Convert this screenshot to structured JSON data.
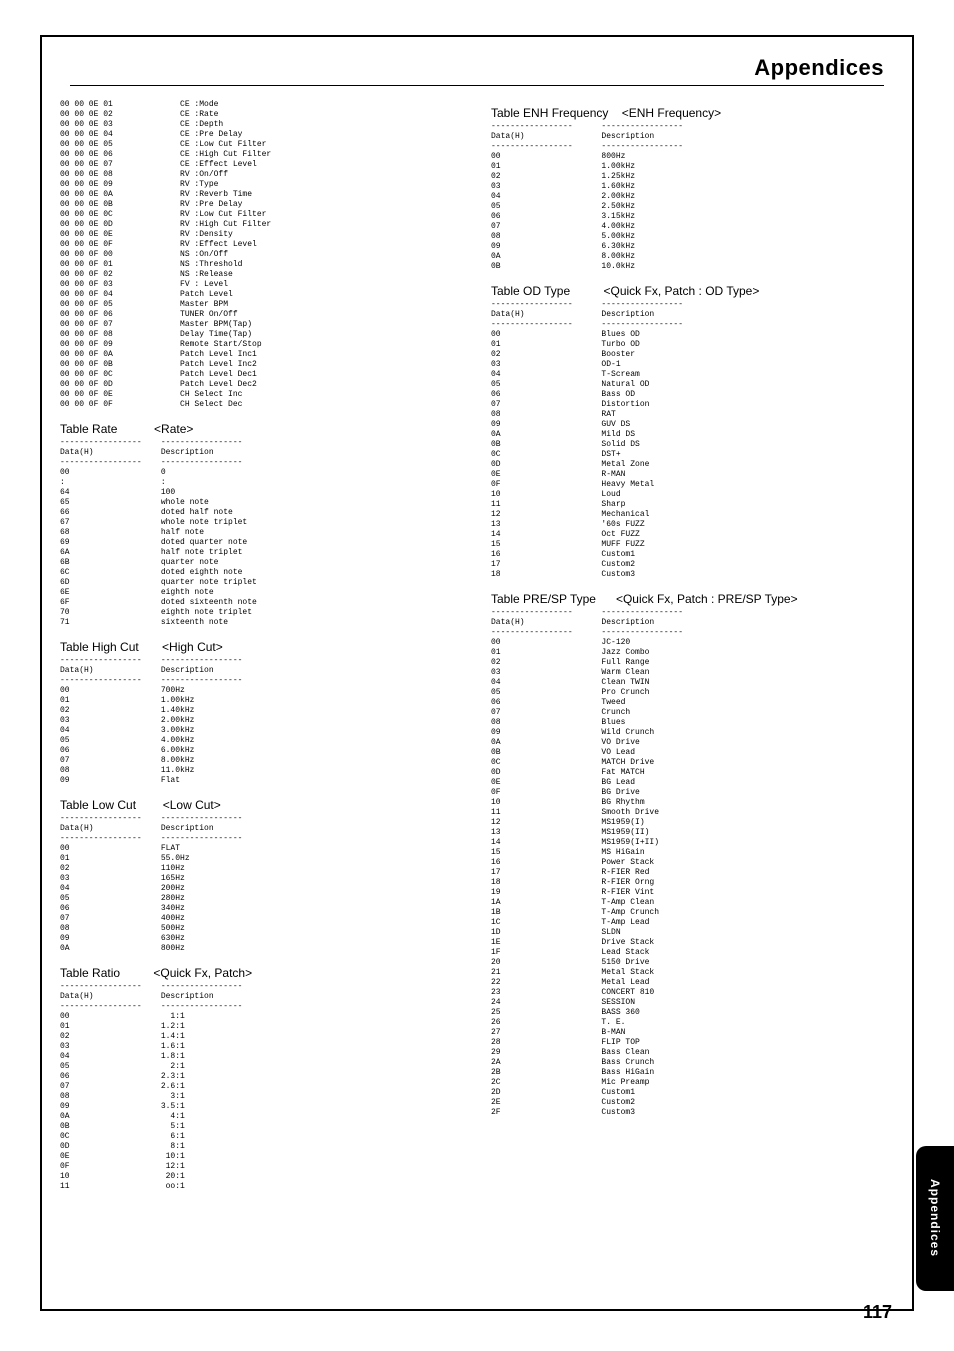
{
  "header_title": "Appendices",
  "side_tab": "Appendices",
  "page_number": "117",
  "left": {
    "hexdump": "00 00 0E 01              CE :Mode\n00 00 0E 02              CE :Rate\n00 00 0E 03              CE :Depth\n00 00 0E 04              CE :Pre Delay\n00 00 0E 05              CE :Low Cut Filter\n00 00 0E 06              CE :High Cut Filter\n00 00 0E 07              CE :Effect Level\n00 00 0E 08              RV :On/Off\n00 00 0E 09              RV :Type\n00 00 0E 0A              RV :Reverb Time\n00 00 0E 0B              RV :Pre Delay\n00 00 0E 0C              RV :Low Cut Filter\n00 00 0E 0D              RV :High Cut Filter\n00 00 0E 0E              RV :Density\n00 00 0E 0F              RV :Effect Level\n00 00 0F 00              NS :On/Off\n00 00 0F 01              NS :Threshold\n00 00 0F 02              NS :Release\n00 00 0F 03              FV : Level\n00 00 0F 04              Patch Level\n00 00 0F 05              Master BPM\n00 00 0F 06              TUNER On/Off\n00 00 0F 07              Master BPM(Tap)\n00 00 0F 08              Delay Time(Tap)\n00 00 0F 09              Remote Start/Stop\n00 00 0F 0A              Patch Level Inc1\n00 00 0F 0B              Patch Level Inc2\n00 00 0F 0C              Patch Level Dec1\n00 00 0F 0D              Patch Level Dec2\n00 00 0F 0E              CH Select Inc\n00 00 0F 0F              CH Select Dec",
    "rate_title": "Table Rate           <Rate>",
    "rate_body": "-----------------    -----------------\nData(H)              Description\n-----------------    -----------------\n00                   0\n:                    :\n64                   100\n65                   whole note\n66                   doted half note\n67                   whole note triplet\n68                   half note\n69                   doted quarter note\n6A                   half note triplet\n6B                   quarter note\n6C                   doted eighth note\n6D                   quarter note triplet\n6E                   eighth note\n6F                   doted sixteenth note\n70                   eighth note triplet\n71                   sixteenth note",
    "highcut_title": "Table High Cut       <High Cut>",
    "highcut_body": "-----------------    -----------------\nData(H)              Description\n-----------------    -----------------\n00                   700Hz\n01                   1.00kHz\n02                   1.40kHz\n03                   2.00kHz\n04                   3.00kHz\n05                   4.00kHz\n06                   6.00kHz\n07                   8.00kHz\n08                   11.0kHz\n09                   Flat",
    "lowcut_title": "Table Low Cut        <Low Cut>",
    "lowcut_body": "-----------------    -----------------\nData(H)              Description\n-----------------    -----------------\n00                   FLAT\n01                   55.0Hz\n02                   110Hz\n03                   165Hz\n04                   200Hz\n05                   280Hz\n06                   340Hz\n07                   400Hz\n08                   500Hz\n09                   630Hz\n0A                   800Hz",
    "ratio_title": "Table Ratio          <Quick Fx, Patch>",
    "ratio_body": "-----------------    -----------------\nData(H)              Description\n-----------------    -----------------\n00                     1:1\n01                   1.2:1\n02                   1.4:1\n03                   1.6:1\n04                   1.8:1\n05                     2:1\n06                   2.3:1\n07                   2.6:1\n08                     3:1\n09                   3.5:1\n0A                     4:1\n0B                     5:1\n0C                     6:1\n0D                     8:1\n0E                    10:1\n0F                    12:1\n10                    20:1\n11                    oo:1"
  },
  "right": {
    "enh_title": "Table ENH Frequency    <ENH Frequency>",
    "enh_body": "-----------------      -----------------\nData(H)                Description\n-----------------      -----------------\n00                     800Hz\n01                     1.00kHz\n02                     1.25kHz\n03                     1.60kHz\n04                     2.00kHz\n05                     2.50kHz\n06                     3.15kHz\n07                     4.00kHz\n08                     5.00kHz\n09                     6.30kHz\n0A                     8.00kHz\n0B                     10.0kHz",
    "od_title": "Table OD Type          <Quick Fx, Patch : OD Type>",
    "od_body": "-----------------      -----------------\nData(H)                Description\n-----------------      -----------------\n00                     Blues OD\n01                     Turbo OD\n02                     Booster\n03                     OD-1\n04                     T-Scream\n05                     Natural OD\n06                     Bass OD\n07                     Distortion\n08                     RAT\n09                     GUV DS\n0A                     Mild DS\n0B                     Solid DS\n0C                     DST+\n0D                     Metal Zone\n0E                     R-MAN\n0F                     Heavy Metal\n10                     Loud\n11                     Sharp\n12                     Mechanical\n13                     '60s FUZZ\n14                     Oct FUZZ\n15                     MUFF FUZZ\n16                     Custom1\n17                     Custom2\n18                     Custom3",
    "presp_title": "Table PRE/SP Type      <Quick Fx, Patch : PRE/SP Type>",
    "presp_body": "-----------------      -----------------\nData(H)                Description\n-----------------      -----------------\n00                     JC-120\n01                     Jazz Combo\n02                     Full Range\n03                     Warm Clean\n04                     Clean TWIN\n05                     Pro Crunch\n06                     Tweed\n07                     Crunch\n08                     Blues\n09                     Wild Crunch\n0A                     VO Drive\n0B                     VO Lead\n0C                     MATCH Drive\n0D                     Fat MATCH\n0E                     BG Lead\n0F                     BG Drive\n10                     BG Rhythm\n11                     Smooth Drive\n12                     MS1959(I)\n13                     MS1959(II)\n14                     MS1959(I+II)\n15                     MS HiGain\n16                     Power Stack\n17                     R-FIER Red\n18                     R-FIER Orng\n19                     R-FIER Vint\n1A                     T-Amp Clean\n1B                     T-Amp Crunch\n1C                     T-Amp Lead\n1D                     SLDN\n1E                     Drive Stack\n1F                     Lead Stack\n20                     5150 Drive\n21                     Metal Stack\n22                     Metal Lead\n23                     CONCERT 810\n24                     SESSION\n25                     BASS 360\n26                     T. E.\n27                     B-MAN\n28                     FLIP TOP\n29                     Bass Clean\n2A                     Bass Crunch\n2B                     Bass HiGain\n2C                     Mic Preamp\n2D                     Custom1\n2E                     Custom2\n2F                     Custom3"
  }
}
